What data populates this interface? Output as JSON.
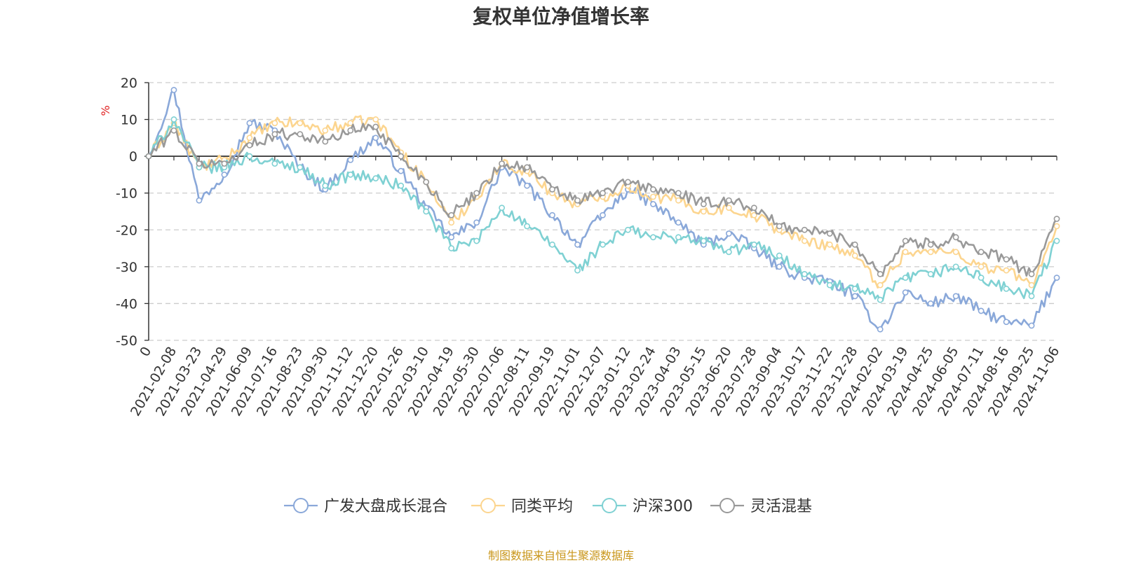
{
  "title": "复权单位净值增长率",
  "footer": "制图数据来自恒生聚源数据库",
  "chart_data": {
    "type": "line",
    "title": "复权单位净值增长率",
    "ylabel": "%",
    "ylim": [
      -50,
      20
    ],
    "yticks": [
      20,
      10,
      0,
      -10,
      -20,
      -30,
      -40,
      -50
    ],
    "grid": true,
    "legend_position": "bottom",
    "x": [
      "0",
      "2021-02-08",
      "2021-03-23",
      "2021-04-29",
      "2021-06-09",
      "2021-07-16",
      "2021-08-23",
      "2021-09-30",
      "2021-11-12",
      "2021-12-20",
      "2022-01-26",
      "2022-03-10",
      "2022-04-19",
      "2022-05-30",
      "2022-07-06",
      "2022-08-11",
      "2022-09-19",
      "2022-11-01",
      "2022-12-07",
      "2023-01-12",
      "2023-02-24",
      "2023-04-03",
      "2023-05-15",
      "2023-06-20",
      "2023-07-28",
      "2023-09-04",
      "2023-10-17",
      "2023-11-22",
      "2023-12-28",
      "2024-02-02",
      "2024-03-19",
      "2024-04-25",
      "2024-06-05",
      "2024-07-11",
      "2024-08-16",
      "2024-09-25",
      "2024-11-06"
    ],
    "series": [
      {
        "name": "广发大盘成长混合",
        "color": "#8aa8d9",
        "values": [
          0,
          18,
          -12,
          -5,
          9,
          7,
          -3,
          -9,
          -1,
          5,
          -4,
          -14,
          -22,
          -18,
          -3,
          -8,
          -16,
          -24,
          -16,
          -9,
          -13,
          -18,
          -24,
          -21,
          -25,
          -30,
          -33,
          -34,
          -38,
          -47,
          -37,
          -40,
          -38,
          -42,
          -45,
          -46,
          -33
        ]
      },
      {
        "name": "同类平均",
        "color": "#fcd58f",
        "values": [
          0,
          9,
          -3,
          -1,
          5,
          9,
          9,
          7,
          9,
          10,
          1,
          -7,
          -18,
          -11,
          -2,
          -4,
          -10,
          -13,
          -11,
          -8,
          -11,
          -12,
          -15,
          -14,
          -16,
          -20,
          -23,
          -24,
          -27,
          -35,
          -26,
          -26,
          -26,
          -30,
          -31,
          -35,
          -19
        ]
      },
      {
        "name": "沪深300",
        "color": "#7fd1d3",
        "values": [
          0,
          10,
          -3,
          -3,
          0,
          -2,
          -3,
          -8,
          -5,
          -6,
          -8,
          -15,
          -25,
          -23,
          -14,
          -19,
          -24,
          -31,
          -24,
          -20,
          -22,
          -22,
          -23,
          -26,
          -24,
          -27,
          -32,
          -35,
          -36,
          -39,
          -33,
          -32,
          -30,
          -33,
          -36,
          -38,
          -23
        ]
      },
      {
        "name": "灵活混基",
        "color": "#999999",
        "values": [
          0,
          7,
          -2,
          -2,
          3,
          6,
          6,
          4,
          7,
          8,
          0,
          -7,
          -16,
          -10,
          -2,
          -3,
          -9,
          -12,
          -10,
          -7,
          -9,
          -10,
          -13,
          -12,
          -14,
          -19,
          -20,
          -21,
          -24,
          -32,
          -23,
          -24,
          -22,
          -26,
          -28,
          -32,
          -17
        ]
      }
    ]
  }
}
